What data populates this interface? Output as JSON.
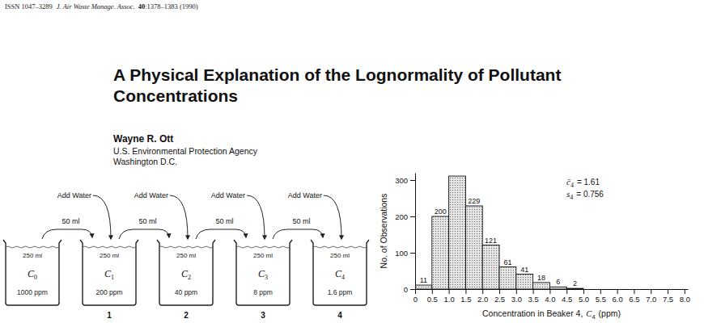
{
  "header": {
    "issn": "ISSN 1047–3289",
    "journal": "J. Air Waste Manage. Assoc.",
    "volume": "40",
    "pages": ":1378–1383 (1990)"
  },
  "title": [
    "A Physical Explanation of the Lognormality of Pollutant",
    "Concentrations"
  ],
  "author": {
    "name": "Wayne R. Ott",
    "affiliation": [
      "U.S. Environmental Protection Agency",
      "Washington D.C."
    ]
  },
  "diagram": {
    "add_label": "Add Water",
    "transfer_label": "50 ml",
    "beakers": [
      {
        "volume": "250 ml",
        "symbol": "C",
        "subscript": "0",
        "concentration": "1000 ppm",
        "number": null
      },
      {
        "volume": "250 ml",
        "symbol": "C",
        "subscript": "1",
        "concentration": "200 ppm",
        "number": "1"
      },
      {
        "volume": "250 ml",
        "symbol": "C",
        "subscript": "2",
        "concentration": "40 ppm",
        "number": "2"
      },
      {
        "volume": "250 ml",
        "symbol": "C",
        "subscript": "3",
        "concentration": "8 ppm",
        "number": "3"
      },
      {
        "volume": "250 ml",
        "symbol": "C",
        "subscript": "4",
        "concentration": "1.6 ppm",
        "number": "4"
      }
    ]
  },
  "chart_data": {
    "type": "histogram",
    "bins": [
      0,
      0.5,
      1,
      1.5,
      2,
      2.5,
      3,
      3.5,
      4,
      4.5,
      5
    ],
    "values": [
      11,
      200,
      311,
      229,
      121,
      61,
      41,
      18,
      6,
      2
    ],
    "value_labels": [
      "11",
      "200",
      null,
      "229",
      "121",
      "61",
      "41",
      "18",
      "6",
      "2"
    ],
    "data_labels": true,
    "color": "#e4e4e4",
    "xlim": [
      0,
      8.1
    ],
    "ylim": [
      0,
      320
    ],
    "xticks": [
      0,
      0.5,
      {
        "value": 1,
        "label": "1.0"
      },
      1.5,
      {
        "value": 2,
        "label": "2.0"
      },
      2.5,
      {
        "value": 3,
        "label": "3.0"
      },
      3.5,
      {
        "value": 4,
        "label": "4.0"
      },
      4.5,
      {
        "value": 5,
        "label": "5.0"
      },
      5.5,
      {
        "value": 6,
        "label": "6.0"
      },
      6.5,
      {
        "value": 7,
        "label": "7.0"
      },
      7.5,
      {
        "value": 8,
        "label": "8.0"
      }
    ],
    "yticks": [
      0,
      100,
      200,
      300
    ],
    "ylabel": "No. of Observations",
    "xlabel": {
      "text": "Concentration in Beaker 4,",
      "symbol": "C",
      "subscript": "4",
      "unit": "(ppm)"
    },
    "annotations": [
      {
        "symbol": "c̄",
        "subscript": "4",
        "text": "= 1.61"
      },
      {
        "symbol": "s",
        "subscript": "4",
        "text": "= 0.756"
      }
    ]
  }
}
